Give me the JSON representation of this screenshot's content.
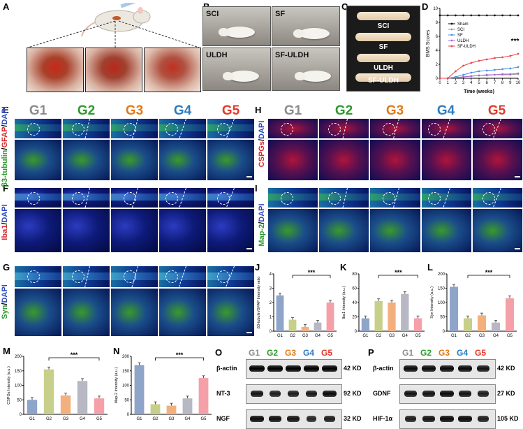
{
  "panel_letters": [
    "A",
    "B",
    "C",
    "D",
    "E",
    "F",
    "G",
    "H",
    "I",
    "J",
    "K",
    "L",
    "M",
    "N",
    "O",
    "P"
  ],
  "groups": [
    "G1",
    "G2",
    "G3",
    "G4",
    "G5"
  ],
  "group_colors": [
    "#8c8c8c",
    "#2e9a2e",
    "#e07a1a",
    "#2d7ac0",
    "#e23a2a"
  ],
  "panel_B": {
    "labels": [
      "SCI",
      "SF",
      "ULDH",
      "SF-ULDH"
    ]
  },
  "panel_C": {
    "labels": [
      "SCI",
      "SF",
      "ULDH",
      "SF-ULDH"
    ]
  },
  "stain_labels": {
    "E": {
      "a": "β3-tubulin",
      "b": "GFAP",
      "c": "DAPI"
    },
    "F": {
      "a": "Iba1",
      "b": "DAPI"
    },
    "G": {
      "a": "Syn",
      "b": "DAPI"
    },
    "H": {
      "a": "CSPGs",
      "b": "DAPI"
    },
    "I": {
      "a": "Map-2",
      "b": "DAPI"
    }
  },
  "blot_O": {
    "groups": [
      "G1",
      "G2",
      "G3",
      "G4",
      "G5"
    ],
    "rows": [
      {
        "name": "β-actin",
        "kd": "42 KD"
      },
      {
        "name": "NT-3",
        "kd": "92 KD"
      },
      {
        "name": "NGF",
        "kd": "32 KD"
      }
    ]
  },
  "blot_P": {
    "groups": [
      "G1",
      "G2",
      "G3",
      "G4",
      "G5"
    ],
    "rows": [
      {
        "name": "β-actin",
        "kd": "42 KD"
      },
      {
        "name": "GDNF",
        "kd": "27 KD"
      },
      {
        "name": "HIF-1α",
        "kd": "105 KD"
      }
    ]
  },
  "chart_data": [
    {
      "panel": "D",
      "type": "line",
      "x": [
        0,
        1,
        2,
        3,
        4,
        5,
        6,
        7,
        8,
        9,
        10
      ],
      "xlabel": "Time (weeks)",
      "ylabel": "BMS Scores",
      "ylim": [
        0,
        10
      ],
      "yticks": [
        0,
        2,
        4,
        6,
        8,
        10
      ],
      "legend_position": "right",
      "annotation": "***",
      "series": [
        {
          "name": "Sham",
          "color": "#000000",
          "values": [
            9,
            9,
            9,
            9,
            9,
            9,
            9,
            9,
            9,
            9,
            9
          ]
        },
        {
          "name": "SCI",
          "color": "#9a9a9a",
          "values": [
            0,
            0,
            0.1,
            0.2,
            0.3,
            0.4,
            0.4,
            0.5,
            0.5,
            0.5,
            0.6
          ]
        },
        {
          "name": "SF",
          "color": "#4a90e2",
          "values": [
            0,
            0,
            0.2,
            0.5,
            0.8,
            1.0,
            1.1,
            1.2,
            1.3,
            1.4,
            1.6
          ]
        },
        {
          "name": "ULDH",
          "color": "#b06ad8",
          "values": [
            0,
            0,
            0.1,
            0.2,
            0.3,
            0.4,
            0.5,
            0.5,
            0.6,
            0.6,
            0.7
          ]
        },
        {
          "name": "SF-ULDH",
          "color": "#e8474c",
          "values": [
            0,
            0,
            1.0,
            1.8,
            2.2,
            2.5,
            2.7,
            2.9,
            3.0,
            3.2,
            3.5
          ]
        }
      ]
    },
    {
      "panel": "J",
      "type": "bar",
      "categories": [
        "G1",
        "G2",
        "G3",
        "G4",
        "G5"
      ],
      "values": [
        2.5,
        0.8,
        0.3,
        0.6,
        2.0
      ],
      "ylabel": "β3-tubulin/GFAP Intensity ratio",
      "ylim": [
        0,
        4
      ],
      "yticks": [
        0,
        1,
        2,
        3,
        4
      ],
      "annotation": "***"
    },
    {
      "panel": "K",
      "type": "bar",
      "categories": [
        "G1",
        "G2",
        "G3",
        "G4",
        "G5"
      ],
      "values": [
        18,
        42,
        40,
        52,
        18
      ],
      "ylabel": "Iba1 Intensity (a.u.)",
      "ylim": [
        0,
        80
      ],
      "yticks": [
        0,
        20,
        40,
        60,
        80
      ],
      "annotation": "***"
    },
    {
      "panel": "L",
      "type": "bar",
      "categories": [
        "G1",
        "G2",
        "G3",
        "G4",
        "G5"
      ],
      "values": [
        155,
        45,
        55,
        30,
        115
      ],
      "ylabel": "Syn Intensity (a.u.)",
      "ylim": [
        0,
        200
      ],
      "yticks": [
        0,
        50,
        100,
        150,
        200
      ],
      "annotation": "***"
    },
    {
      "panel": "M",
      "type": "bar",
      "categories": [
        "G1",
        "G2",
        "G3",
        "G4",
        "G5"
      ],
      "values": [
        50,
        155,
        65,
        115,
        55
      ],
      "ylabel": "CSPGs Intensity (a.u.)",
      "ylim": [
        0,
        200
      ],
      "yticks": [
        0,
        50,
        100,
        150,
        200
      ],
      "annotation": "***"
    },
    {
      "panel": "N",
      "type": "bar",
      "categories": [
        "G1",
        "G2",
        "G3",
        "G4",
        "G5"
      ],
      "values": [
        170,
        35,
        30,
        55,
        125
      ],
      "ylabel": "Map-2 Intensity (a.u.)",
      "ylim": [
        0,
        200
      ],
      "yticks": [
        0,
        50,
        100,
        150,
        200
      ],
      "annotation": "***"
    }
  ],
  "bar_colors": [
    "#8ea5c9",
    "#c8cf8a",
    "#f2b07f",
    "#b8b8c4",
    "#f5a0a8"
  ]
}
